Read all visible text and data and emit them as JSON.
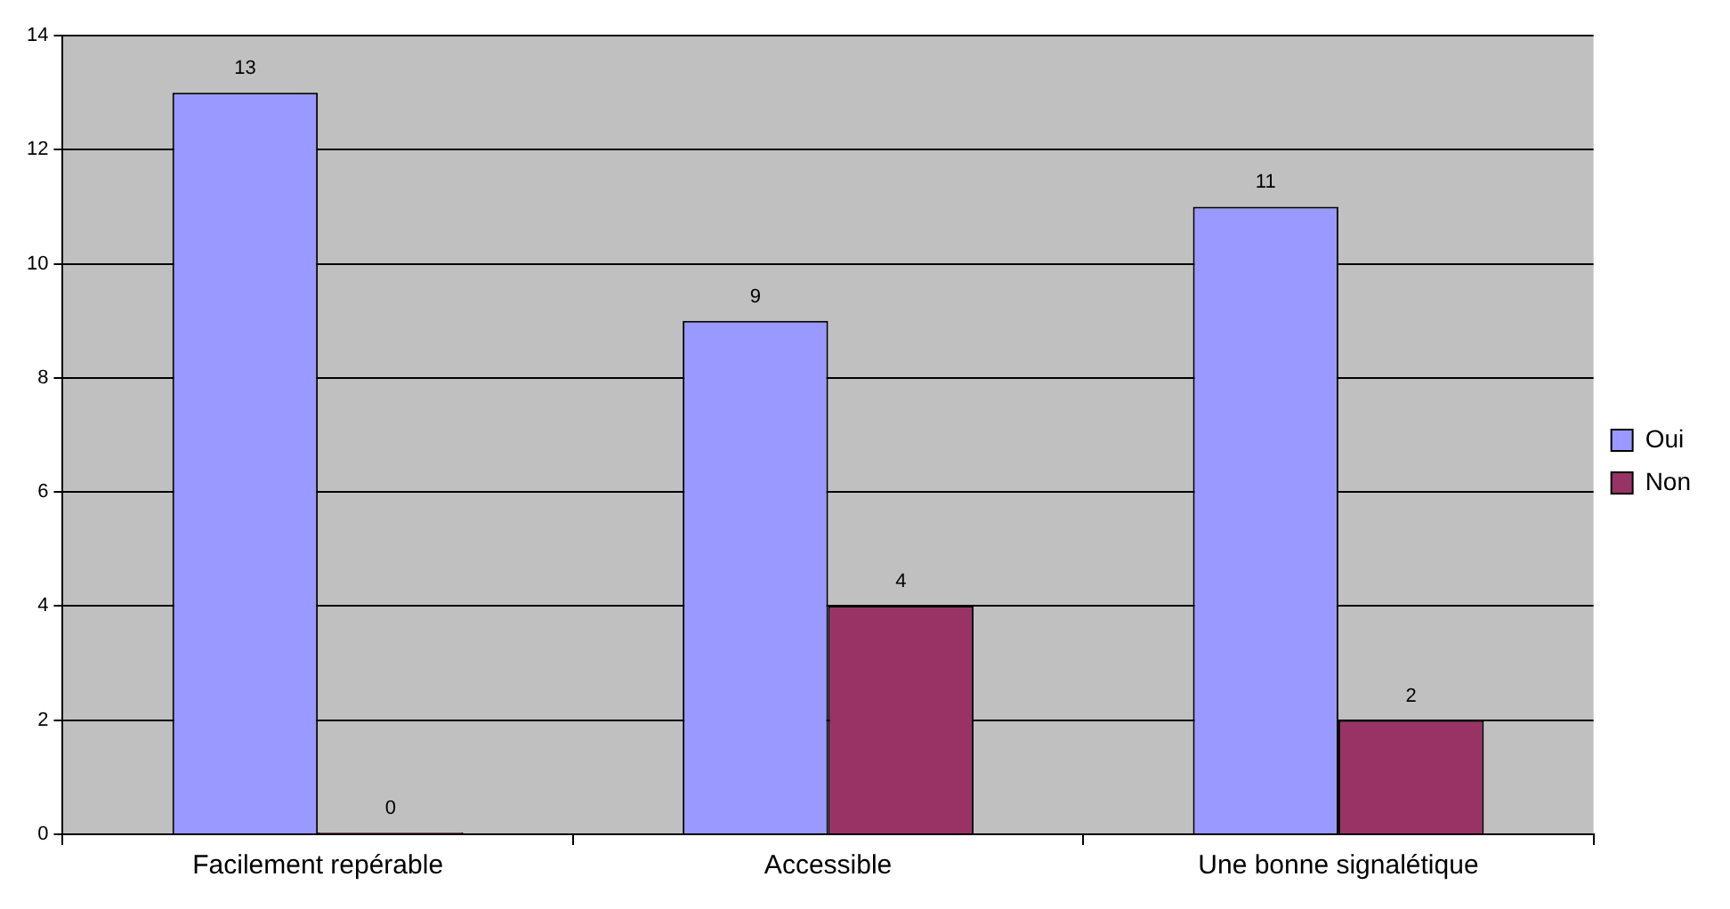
{
  "chart_data": {
    "type": "bar",
    "categories": [
      "Facilement repérable",
      "Accessible",
      "Une bonne signalétique"
    ],
    "series": [
      {
        "name": "Oui",
        "color": "#9999ff",
        "values": [
          13,
          9,
          11
        ]
      },
      {
        "name": "Non",
        "color": "#993366",
        "values": [
          0,
          4,
          2
        ]
      }
    ],
    "ylim": [
      0,
      14
    ],
    "yticks": [
      0,
      2,
      4,
      6,
      8,
      10,
      12,
      14
    ],
    "grid": "y",
    "legend": "right",
    "data_labels": true
  }
}
